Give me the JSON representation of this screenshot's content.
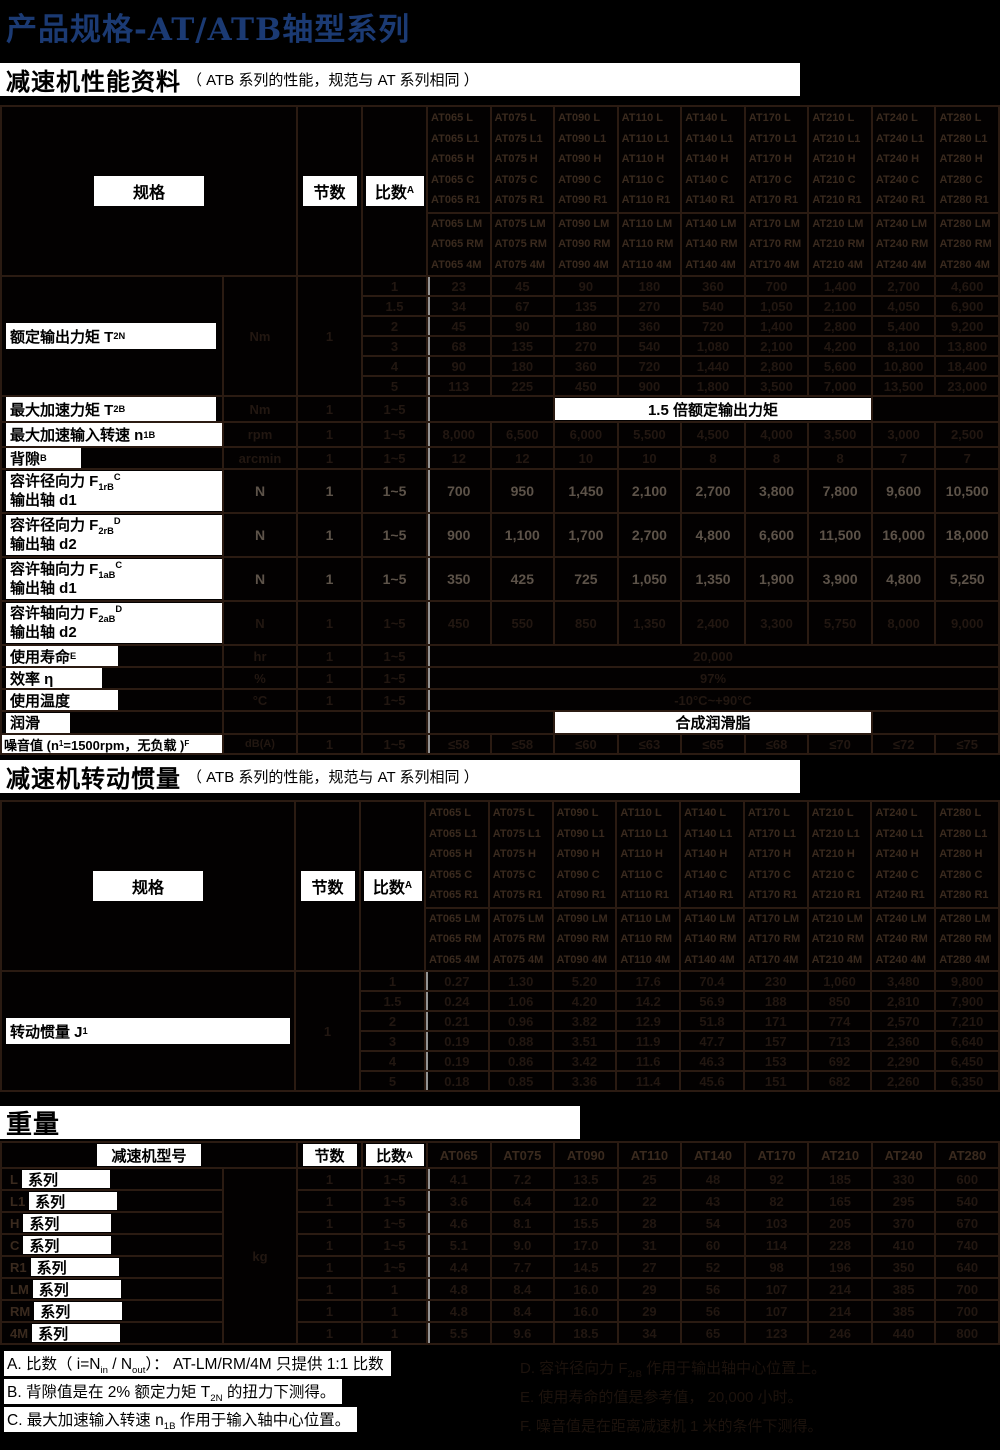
{
  "page": {
    "title": "产品规格-AT/ATB轴型系列"
  },
  "colors": {
    "title_blue": "#1b3a73",
    "page_bg": "#000000",
    "grid_line": "#2b1b12",
    "dim_header_text": "#3a2a1e",
    "dim_value_text": "#221711",
    "bright_value_text": "#5d5349",
    "label_box_bg": "#ffffff"
  },
  "sections": {
    "performance": {
      "title": "减速机性能资料",
      "subtitle": "（ ATB 系列的性能，规范与 AT 系列相同 ）"
    },
    "inertia": {
      "title": "减速机转动惯量",
      "subtitle": "（ ATB 系列的性能，规范与 AT 系列相同 ）"
    },
    "weight": {
      "title": "重量"
    }
  },
  "table_headers": {
    "spec": "规格",
    "stages": "节数",
    "ratio": [
      [
        "比数"
      ],
      [
        "A",
        "sup"
      ]
    ],
    "model_label": "减速机型号"
  },
  "models": {
    "codes": [
      "AT065",
      "AT075",
      "AT090",
      "AT110",
      "AT140",
      "AT170",
      "AT210",
      "AT240",
      "AT280"
    ],
    "variants1": [
      "L",
      "L1",
      "H",
      "C",
      "R1"
    ],
    "variants2": [
      "LM",
      "RM",
      "4M"
    ]
  },
  "performance": {
    "t2n": {
      "label": [
        [
          "额定输出力矩 T"
        ],
        [
          "2N",
          "sub"
        ]
      ],
      "unit": "Nm",
      "stages": "1",
      "ratios": [
        "1",
        "1.5",
        "2",
        "3",
        "4",
        "5"
      ],
      "values": [
        [
          "23",
          "45",
          "90",
          "180",
          "360",
          "700",
          "1,400",
          "2,700",
          "4,600"
        ],
        [
          "34",
          "67",
          "135",
          "270",
          "540",
          "1,050",
          "2,100",
          "4,050",
          "6,900"
        ],
        [
          "45",
          "90",
          "180",
          "360",
          "720",
          "1,400",
          "2,800",
          "5,400",
          "9,200"
        ],
        [
          "68",
          "135",
          "270",
          "540",
          "1,080",
          "2,100",
          "4,200",
          "8,100",
          "13,800"
        ],
        [
          "90",
          "180",
          "360",
          "720",
          "1,440",
          "2,800",
          "5,600",
          "10,800",
          "18,400"
        ],
        [
          "113",
          "225",
          "450",
          "900",
          "1,800",
          "3,500",
          "7,000",
          "13,500",
          "23,000"
        ]
      ]
    },
    "t2b": {
      "label": [
        [
          "最大加速力矩 T"
        ],
        [
          "2B",
          "sub"
        ]
      ],
      "unit": "Nm",
      "stages": "1",
      "ratio": "1~5",
      "banner": "1.5 倍额定输出力矩"
    },
    "n1b": {
      "label": [
        [
          "最大加速输入转速 n"
        ],
        [
          "1B",
          "sub"
        ]
      ],
      "unit": "rpm",
      "stages": "1",
      "ratio": "1~5",
      "values": [
        "8,000",
        "6,500",
        "6,000",
        "5,500",
        "4,500",
        "4,000",
        "3,500",
        "3,000",
        "2,500"
      ]
    },
    "backlash": {
      "label": [
        [
          "背隙 "
        ],
        [
          "B",
          "sup"
        ]
      ],
      "unit": "arcmin",
      "stages": "1",
      "ratio": "1~5",
      "values": [
        "12",
        "12",
        "10",
        "10",
        "8",
        "8",
        "8",
        "7",
        "7"
      ]
    },
    "forces": [
      {
        "label1": [
          [
            "容许径向力 F"
          ],
          [
            "1rB",
            "sub"
          ],
          [
            "C",
            "sup"
          ]
        ],
        "label2": "输出轴 d1",
        "unit": "N",
        "stages": "1",
        "ratio": "1~5",
        "bright": true,
        "values": [
          "700",
          "950",
          "1,450",
          "2,100",
          "2,700",
          "3,800",
          "7,800",
          "9,600",
          "10,500"
        ]
      },
      {
        "label1": [
          [
            "容许径向力 F"
          ],
          [
            "2rB",
            "sub"
          ],
          [
            "D",
            "sup"
          ]
        ],
        "label2": "输出轴 d2",
        "unit": "N",
        "stages": "1",
        "ratio": "1~5",
        "bright": true,
        "values": [
          "900",
          "1,100",
          "1,700",
          "2,700",
          "4,800",
          "6,600",
          "11,500",
          "16,000",
          "18,000"
        ]
      },
      {
        "label1": [
          [
            "容许轴向力 F"
          ],
          [
            "1aB",
            "sub"
          ],
          [
            "C",
            "sup"
          ]
        ],
        "label2": "输出轴 d1",
        "unit": "N",
        "stages": "1",
        "ratio": "1~5",
        "bright": true,
        "values": [
          "350",
          "425",
          "725",
          "1,050",
          "1,350",
          "1,900",
          "3,900",
          "4,800",
          "5,250"
        ]
      },
      {
        "label1": [
          [
            "容许轴向力 F"
          ],
          [
            "2aB",
            "sub"
          ],
          [
            "D",
            "sup"
          ]
        ],
        "label2": "输出轴 d2",
        "unit": "N",
        "stages": "1",
        "ratio": "1~5",
        "bright": false,
        "values": [
          "450",
          "550",
          "850",
          "1,350",
          "2,400",
          "3,300",
          "5,750",
          "8,000",
          "9,000"
        ]
      }
    ],
    "life": {
      "label": [
        [
          "使用寿命 "
        ],
        [
          "E",
          "sup"
        ]
      ],
      "unit": "hr",
      "stages": "1",
      "ratio": "1~5",
      "value": "20,000"
    },
    "eff": {
      "label": [
        [
          "效率 η"
        ]
      ],
      "unit": "%",
      "stages": "1",
      "ratio": "1~5",
      "value": "97%"
    },
    "temp": {
      "label": [
        [
          "使用温度"
        ]
      ],
      "unit": "°C",
      "stages": "1",
      "ratio": "1~5",
      "value": "-10°C~+90°C"
    },
    "lube": {
      "label": [
        [
          "润滑"
        ]
      ],
      "banner": "合成润滑脂"
    },
    "noise": {
      "label": [
        [
          "噪音值 (n"
        ],
        [
          "1",
          "sub"
        ],
        [
          "=1500rpm，无负载 )"
        ],
        [
          "F",
          "sup"
        ]
      ],
      "unit": "dB(A)",
      "stages": "1",
      "ratio": "1~5",
      "values": [
        "≤58",
        "≤58",
        "≤60",
        "≤63",
        "≤65",
        "≤68",
        "≤70",
        "≤72",
        "≤75"
      ]
    }
  },
  "inertia": {
    "label": [
      [
        "转动惯量 J"
      ],
      [
        "1",
        "sub"
      ]
    ],
    "stages": "1",
    "ratios": [
      "1",
      "1.5",
      "2",
      "3",
      "4",
      "5"
    ],
    "values": [
      [
        "0.27",
        "1.30",
        "5.20",
        "17.6",
        "70.4",
        "230",
        "1,060",
        "3,480",
        "9,800"
      ],
      [
        "0.24",
        "1.06",
        "4.20",
        "14.2",
        "56.9",
        "188",
        "850",
        "2,810",
        "7,900"
      ],
      [
        "0.21",
        "0.96",
        "3.82",
        "12.9",
        "51.8",
        "171",
        "774",
        "2,570",
        "7,210"
      ],
      [
        "0.19",
        "0.88",
        "3.51",
        "11.9",
        "47.7",
        "157",
        "713",
        "2,360",
        "6,640"
      ],
      [
        "0.19",
        "0.86",
        "3.42",
        "11.6",
        "46.3",
        "153",
        "692",
        "2,290",
        "6,450"
      ],
      [
        "0.18",
        "0.85",
        "3.36",
        "11.4",
        "45.6",
        "151",
        "682",
        "2,260",
        "6,350"
      ]
    ]
  },
  "weight": {
    "unit": "kg",
    "series_word": "系列",
    "rows": [
      {
        "prefix": "L",
        "stages": "1",
        "ratio": "1~5",
        "values": [
          "4.1",
          "7.2",
          "13.5",
          "25",
          "48",
          "92",
          "185",
          "330",
          "600"
        ]
      },
      {
        "prefix": "L1",
        "stages": "1",
        "ratio": "1~5",
        "values": [
          "3.6",
          "6.4",
          "12.0",
          "22",
          "43",
          "82",
          "165",
          "295",
          "540"
        ]
      },
      {
        "prefix": "H",
        "stages": "1",
        "ratio": "1~5",
        "values": [
          "4.6",
          "8.1",
          "15.5",
          "28",
          "54",
          "103",
          "205",
          "370",
          "670"
        ]
      },
      {
        "prefix": "C",
        "stages": "1",
        "ratio": "1~5",
        "values": [
          "5.1",
          "9.0",
          "17.0",
          "31",
          "60",
          "114",
          "228",
          "410",
          "740"
        ]
      },
      {
        "prefix": "R1",
        "stages": "1",
        "ratio": "1~5",
        "values": [
          "4.4",
          "7.7",
          "14.5",
          "27",
          "52",
          "98",
          "196",
          "350",
          "640"
        ]
      },
      {
        "prefix": "LM",
        "stages": "1",
        "ratio": "1",
        "values": [
          "4.8",
          "8.4",
          "16.0",
          "29",
          "56",
          "107",
          "214",
          "385",
          "700"
        ]
      },
      {
        "prefix": "RM",
        "stages": "1",
        "ratio": "1",
        "values": [
          "4.8",
          "8.4",
          "16.0",
          "29",
          "56",
          "107",
          "214",
          "385",
          "700"
        ]
      },
      {
        "prefix": "4M",
        "stages": "1",
        "ratio": "1",
        "values": [
          "5.5",
          "9.6",
          "18.5",
          "34",
          "65",
          "123",
          "246",
          "440",
          "800"
        ]
      }
    ]
  },
  "footnotes": {
    "left": [
      [
        [
          "A. 比数（ i=N"
        ],
        [
          "in",
          "sub"
        ],
        [
          " / N"
        ],
        [
          "out",
          "sub"
        ],
        [
          "）： AT-LM/RM/4M 只提供 1:1 比数"
        ]
      ],
      [
        [
          "B. 背隙值是在 2% 额定力矩 T"
        ],
        [
          "2N",
          "sub"
        ],
        [
          " 的扭力下测得。"
        ]
      ],
      [
        [
          "C. 最大加速输入转速 n"
        ],
        [
          "1B",
          "sub"
        ],
        [
          " 作用于输入轴中心位置。"
        ]
      ]
    ],
    "right": [
      [
        [
          "D. 容许径向力 F"
        ],
        [
          "2rB",
          "sub"
        ],
        [
          " 作用于输出轴中心位置上。"
        ]
      ],
      [
        [
          "E. 使用寿命的值是参考值， 20,000 小时。"
        ]
      ],
      [
        [
          "F. 噪音值是在距离减速机 1 米的条件下测得。"
        ]
      ]
    ]
  }
}
